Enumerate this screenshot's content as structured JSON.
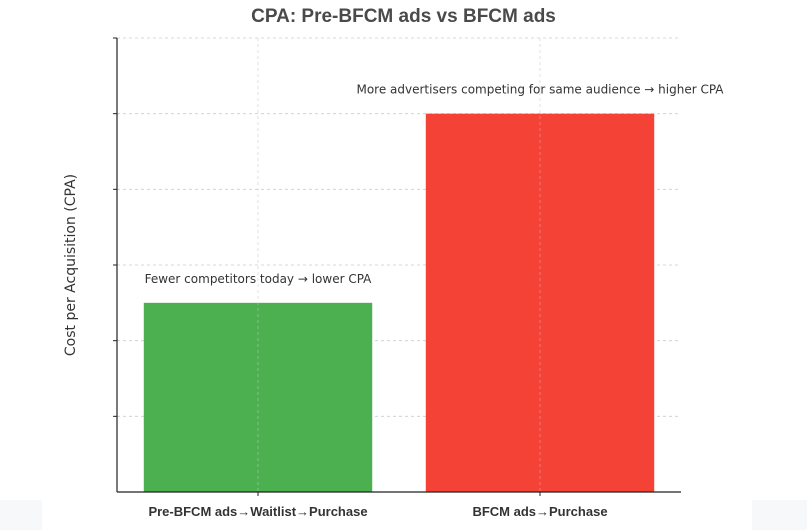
{
  "chart_data": {
    "type": "bar",
    "title": "CPA: Pre-BFCM ads vs BFCM ads",
    "xlabel": "",
    "ylabel": "Cost per Acquisition (CPA)",
    "categories": [
      "Pre-BFCM ads→Waitlist→Purchase",
      "BFCM ads→Purchase"
    ],
    "values": [
      2.5,
      5
    ],
    "ylim": [
      0,
      6
    ],
    "colors": [
      "#4caf50",
      "#f44336"
    ],
    "annotations": [
      "Fewer competitors today → lower CPA",
      "More advertisers competing for same audience → higher CPA"
    ],
    "grid": true,
    "y_tick_labels_shown": false
  }
}
